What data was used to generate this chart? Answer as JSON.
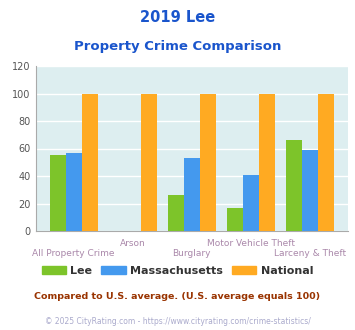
{
  "title_line1": "2019 Lee",
  "title_line2": "Property Crime Comparison",
  "categories": [
    "All Property Crime",
    "Arson",
    "Burglary",
    "Motor Vehicle Theft",
    "Larceny & Theft"
  ],
  "lee_values": [
    55,
    0,
    26,
    17,
    66
  ],
  "massachusetts_values": [
    57,
    0,
    53,
    41,
    59
  ],
  "national_values": [
    100,
    100,
    100,
    100,
    100
  ],
  "lee_color": "#7dc42a",
  "massachusetts_color": "#4499ee",
  "national_color": "#ffaa22",
  "ylim": [
    0,
    120
  ],
  "yticks": [
    0,
    20,
    40,
    60,
    80,
    100,
    120
  ],
  "background_color": "#ddeef0",
  "grid_color": "#ffffff",
  "title_color": "#1a55cc",
  "xlabel_color": "#aa88aa",
  "legend_labels": [
    "Lee",
    "Massachusetts",
    "National"
  ],
  "footnote1": "Compared to U.S. average. (U.S. average equals 100)",
  "footnote2": "© 2025 CityRating.com - https://www.cityrating.com/crime-statistics/",
  "footnote1_color": "#993300",
  "footnote2_color": "#aaaacc"
}
